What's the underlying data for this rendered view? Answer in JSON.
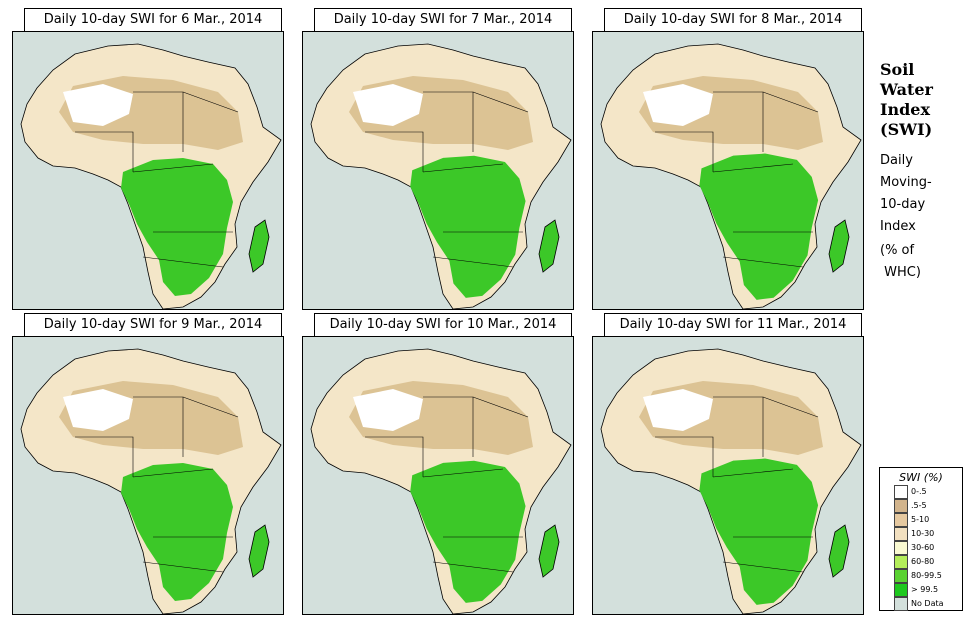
{
  "panels": [
    {
      "title": "Daily 10-day SWI for  6 Mar., 2014"
    },
    {
      "title": "Daily 10-day SWI for  7 Mar., 2014"
    },
    {
      "title": "Daily 10-day SWI for  8 Mar., 2014"
    },
    {
      "title": "Daily 10-day SWI for  9 Mar., 2014"
    },
    {
      "title": "Daily 10-day SWI for  10 Mar., 2014"
    },
    {
      "title": "Daily 10-day SWI for  11 Mar., 2014"
    }
  ],
  "sidebar": {
    "title_lines": [
      "Soil",
      "Water",
      "Index",
      "(SWI)"
    ],
    "desc_lines": [
      "Daily",
      "Moving-",
      "10-day",
      "Index"
    ],
    "unit_lines": [
      "(% of",
      " WHC)"
    ]
  },
  "legend": {
    "title": "SWI (%)",
    "items": [
      {
        "label": "0-.5",
        "color": "#ffffff"
      },
      {
        "label": ".5-5",
        "color": "#d2b48c"
      },
      {
        "label": "5-10",
        "color": "#e6c9a0"
      },
      {
        "label": "10-30",
        "color": "#f2e0c0"
      },
      {
        "label": "30-60",
        "color": "#fafad2"
      },
      {
        "label": "60-80",
        "color": "#b4ee5a"
      },
      {
        "label": "80-99.5",
        "color": "#5ad232"
      },
      {
        "label": "> 99.5",
        "color": "#1ec81e"
      },
      {
        "label": "No Data",
        "color": "#d3e0dc"
      }
    ]
  }
}
